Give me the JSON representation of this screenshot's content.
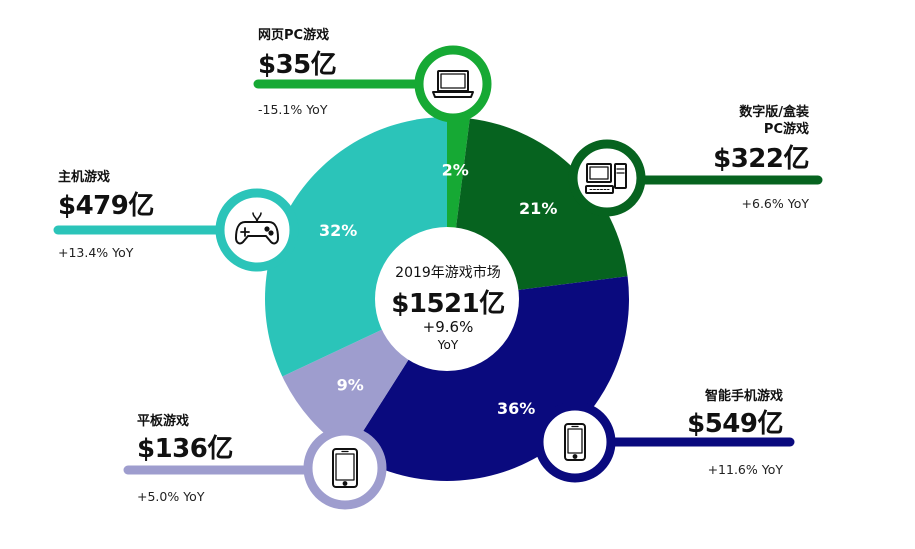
{
  "chart_data": {
    "type": "pie",
    "title": "2019年游戏市场",
    "total": "$1521亿",
    "total_growth": "+9.6%",
    "total_growth_unit": "YoY",
    "series": [
      {
        "name": "网页PC游戏",
        "percent": 2,
        "percent_label": "2%",
        "value": 35,
        "value_label": "$35亿",
        "yoy": "-15.1% YoY",
        "color": "#16a934",
        "icon": "laptop-icon"
      },
      {
        "name": "数字版/盒装 PC游戏",
        "name_lines": [
          "数字版/盒装",
          "PC游戏"
        ],
        "percent": 21,
        "percent_label": "21%",
        "value": 322,
        "value_label": "$322亿",
        "yoy": "+6.6% YoY",
        "color": "#06631f",
        "icon": "desktop-computer-icon"
      },
      {
        "name": "智能手机游戏",
        "percent": 36,
        "percent_label": "36%",
        "value": 549,
        "value_label": "$549亿",
        "yoy": "+11.6% YoY",
        "color": "#0a0a7e",
        "icon": "smartphone-icon"
      },
      {
        "name": "平板游戏",
        "percent": 9,
        "percent_label": "9%",
        "value": 136,
        "value_label": "$136亿",
        "yoy": "+5.0% YoY",
        "color": "#9e9dce",
        "icon": "tablet-icon"
      },
      {
        "name": "主机游戏",
        "percent": 32,
        "percent_label": "32%",
        "value": 479,
        "value_label": "$479亿",
        "yoy": "+13.4% YoY",
        "color": "#2bc4b9",
        "icon": "gamepad-icon"
      }
    ]
  }
}
